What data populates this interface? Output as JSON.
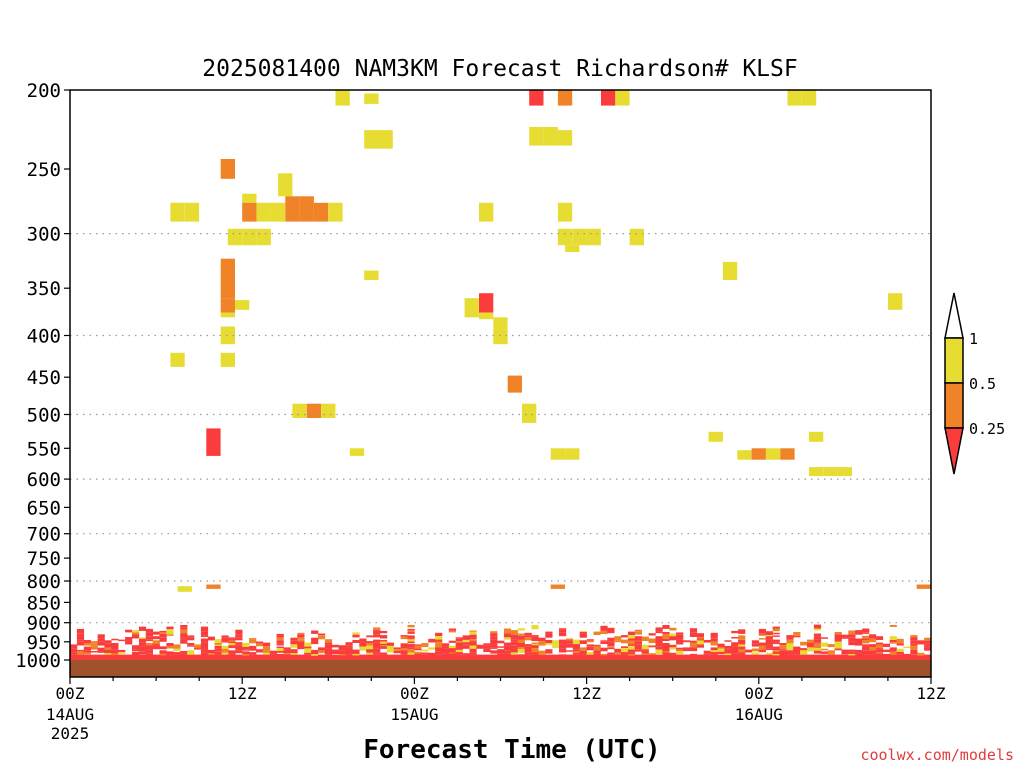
{
  "chart_data": {
    "type": "heatmap",
    "title": "2025081400 NAM3KM Forecast Richardson# KLSF",
    "xlabel": "Forecast Time (UTC)",
    "credit": "coolwx.com/models",
    "x_range_hours": [
      0,
      60
    ],
    "y_range_hpa": [
      1000,
      200
    ],
    "y_scale": "log-pressure",
    "grid": "dotted horizontal",
    "y_ticks": [
      200,
      250,
      300,
      350,
      400,
      450,
      500,
      550,
      600,
      650,
      700,
      750,
      800,
      850,
      900,
      950,
      1000
    ],
    "y_gridlines": [
      300,
      400,
      500,
      600,
      700,
      800,
      900
    ],
    "x_ticks": [
      {
        "hour": 0,
        "label": "00Z",
        "date": "14AUG",
        "year": "2025"
      },
      {
        "hour": 12,
        "label": "12Z",
        "date": "",
        "year": ""
      },
      {
        "hour": 24,
        "label": "00Z",
        "date": "15AUG",
        "year": ""
      },
      {
        "hour": 36,
        "label": "12Z",
        "date": "",
        "year": ""
      },
      {
        "hour": 48,
        "label": "00Z",
        "date": "16AUG",
        "year": ""
      },
      {
        "hour": 60,
        "label": "12Z",
        "date": "",
        "year": ""
      }
    ],
    "legend": {
      "placement": "right",
      "labels": [
        "1",
        "0.5",
        "0.25"
      ],
      "colors": {
        "lt025": "#fa3c3c",
        "r025_05": "#f08228",
        "r05_1": "#e6dc32",
        "gt1": "#ffffff"
      }
    },
    "ground": {
      "color": "#a0522d",
      "top_hpa": 1000
    },
    "cells": [
      [
        19,
        200,
        209,
        "y"
      ],
      [
        21,
        202,
        208,
        "y"
      ],
      [
        32.5,
        200,
        209,
        "r"
      ],
      [
        34.5,
        200,
        209,
        "o"
      ],
      [
        37.5,
        200,
        209,
        "r"
      ],
      [
        38.5,
        200,
        209,
        "y"
      ],
      [
        50.5,
        200,
        209,
        "y"
      ],
      [
        51.5,
        200,
        209,
        "y"
      ],
      [
        21,
        224,
        236,
        "y"
      ],
      [
        22,
        224,
        236,
        "y"
      ],
      [
        32.5,
        222,
        234,
        "y"
      ],
      [
        33.5,
        222,
        234,
        "y"
      ],
      [
        34.5,
        224,
        234,
        "y"
      ],
      [
        11,
        243,
        257,
        "o"
      ],
      [
        15,
        253,
        270,
        "y"
      ],
      [
        7.5,
        275,
        290,
        "y"
      ],
      [
        8.5,
        275,
        290,
        "y"
      ],
      [
        12.5,
        268,
        275,
        "y"
      ],
      [
        12.5,
        275,
        290,
        "o"
      ],
      [
        13.5,
        275,
        290,
        "y"
      ],
      [
        14.5,
        275,
        290,
        "y"
      ],
      [
        15.5,
        270,
        290,
        "o"
      ],
      [
        16.5,
        270,
        290,
        "o"
      ],
      [
        17.5,
        275,
        290,
        "o"
      ],
      [
        18.5,
        275,
        290,
        "y"
      ],
      [
        29,
        275,
        290,
        "y"
      ],
      [
        34.5,
        275,
        290,
        "y"
      ],
      [
        11.5,
        296,
        310,
        "y"
      ],
      [
        12.5,
        296,
        310,
        "y"
      ],
      [
        13.5,
        296,
        310,
        "y"
      ],
      [
        34.5,
        296,
        310,
        "y"
      ],
      [
        35.5,
        296,
        310,
        "y"
      ],
      [
        36.5,
        296,
        310,
        "y"
      ],
      [
        35,
        310,
        316,
        "y"
      ],
      [
        39.5,
        296,
        310,
        "y"
      ],
      [
        11,
        322,
        360,
        "o"
      ],
      [
        11,
        360,
        375,
        "o"
      ],
      [
        11,
        375,
        380,
        "y"
      ],
      [
        21,
        333,
        342,
        "y"
      ],
      [
        46,
        325,
        342,
        "y"
      ],
      [
        12,
        362,
        372,
        "y"
      ],
      [
        28,
        360,
        380,
        "y"
      ],
      [
        29,
        355,
        375,
        "r"
      ],
      [
        29,
        375,
        382,
        "y"
      ],
      [
        30,
        380,
        410,
        "y"
      ],
      [
        57.5,
        355,
        372,
        "y"
      ],
      [
        11,
        390,
        410,
        "y"
      ],
      [
        7.5,
        420,
        437,
        "y"
      ],
      [
        11,
        420,
        437,
        "y"
      ],
      [
        31,
        448,
        470,
        "o"
      ],
      [
        16,
        485,
        505,
        "y"
      ],
      [
        17,
        485,
        505,
        "o"
      ],
      [
        18,
        485,
        505,
        "y"
      ],
      [
        32,
        485,
        512,
        "y"
      ],
      [
        10,
        520,
        562,
        "r"
      ],
      [
        45,
        525,
        540,
        "y"
      ],
      [
        52,
        525,
        540,
        "y"
      ],
      [
        20,
        550,
        562,
        "y"
      ],
      [
        34,
        550,
        568,
        "y"
      ],
      [
        35,
        550,
        568,
        "y"
      ],
      [
        47,
        553,
        568,
        "y"
      ],
      [
        48,
        550,
        568,
        "o"
      ],
      [
        49,
        550,
        568,
        "y"
      ],
      [
        50,
        550,
        568,
        "o"
      ],
      [
        52,
        580,
        595,
        "y"
      ],
      [
        53,
        580,
        595,
        "y"
      ],
      [
        54,
        580,
        595,
        "y"
      ],
      [
        8,
        812,
        825,
        "y"
      ],
      [
        10,
        808,
        818,
        "o"
      ],
      [
        34,
        808,
        818,
        "o"
      ],
      [
        59.5,
        808,
        818,
        "o"
      ]
    ]
  }
}
